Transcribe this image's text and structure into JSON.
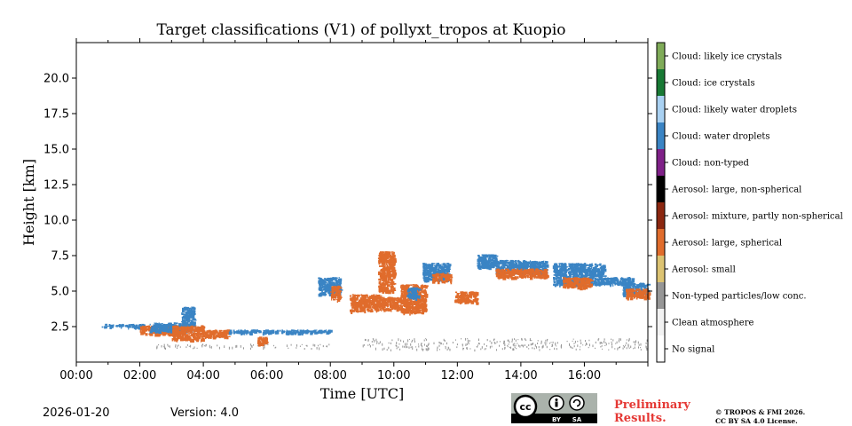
{
  "footer": {
    "date": "2026-01-20",
    "version": "Version: 4.0",
    "prelim_line1": "Preliminary",
    "prelim_line2": "Results.",
    "copyright_line1": "© TROPOS & FMI 2026.",
    "copyright_line2": "CC BY SA 4.0 License.",
    "license_badge": {
      "cc": "cc",
      "by": "BY",
      "sa": "SA"
    }
  },
  "chart_data": {
    "type": "heatmap",
    "title": "Target classifications (V1) of pollyxt_tropos at Kuopio",
    "xlabel": "Time [UTC]",
    "ylabel": "Height [km]",
    "x_unit": "hours UTC",
    "xlim": [
      0,
      18
    ],
    "ylim": [
      0.0,
      22.5
    ],
    "xticks": [
      0,
      2,
      4,
      6,
      8,
      10,
      12,
      14,
      16
    ],
    "xtick_labels": [
      "00:00",
      "02:00",
      "04:00",
      "06:00",
      "08:00",
      "10:00",
      "12:00",
      "14:00",
      "16:00"
    ],
    "yticks": [
      2.5,
      5.0,
      7.5,
      10.0,
      12.5,
      15.0,
      17.5,
      20.0
    ],
    "ytick_labels": [
      "2.5",
      "5.0",
      "7.5",
      "10.0",
      "12.5",
      "15.0",
      "17.5",
      "20.0"
    ],
    "legend": {
      "placement": "right colorbar",
      "classes": [
        {
          "label": "No signal",
          "color": "#ffffff"
        },
        {
          "label": "Clean atmosphere",
          "color": "#f2f2f2"
        },
        {
          "label": "Non-typed particles/low conc.",
          "color": "#969696"
        },
        {
          "label": "Aerosol: small",
          "color": "#dcc372"
        },
        {
          "label": "Aerosol: large, spherical",
          "color": "#e06c2c"
        },
        {
          "label": "Aerosol: mixture, partly non-spherical",
          "color": "#8b2710"
        },
        {
          "label": "Aerosol: large, non-spherical",
          "color": "#000000"
        },
        {
          "label": "Cloud: non-typed",
          "color": "#7f2188"
        },
        {
          "label": "Cloud: water droplets",
          "color": "#3a84c4"
        },
        {
          "label": "Cloud: likely water droplets",
          "color": "#a9d1f2"
        },
        {
          "label": "Cloud: ice crystals",
          "color": "#187934"
        },
        {
          "label": "Cloud: likely ice crystals",
          "color": "#7fab58"
        }
      ]
    },
    "features": [
      {
        "class": "Cloud: water droplets",
        "x": [
          0.8,
          2.1
        ],
        "y": [
          2.5,
          2.7
        ]
      },
      {
        "class": "Aerosol: large, spherical",
        "x": [
          2.0,
          3.3
        ],
        "y": [
          2.0,
          2.6
        ]
      },
      {
        "class": "Cloud: water droplets",
        "x": [
          2.3,
          3.6
        ],
        "y": [
          2.2,
          2.8
        ]
      },
      {
        "class": "Aerosol: large, spherical",
        "x": [
          3.0,
          4.0
        ],
        "y": [
          1.6,
          2.6
        ]
      },
      {
        "class": "Cloud: water droplets",
        "x": [
          3.3,
          3.7
        ],
        "y": [
          2.7,
          3.9
        ]
      },
      {
        "class": "Aerosol: large, spherical",
        "x": [
          4.0,
          4.8
        ],
        "y": [
          1.8,
          2.3
        ]
      },
      {
        "class": "Cloud: water droplets",
        "x": [
          4.8,
          6.0
        ],
        "y": [
          2.1,
          2.3
        ]
      },
      {
        "class": "Aerosol: large, spherical",
        "x": [
          5.7,
          6.0
        ],
        "y": [
          1.3,
          1.8
        ]
      },
      {
        "class": "Cloud: water droplets",
        "x": [
          6.0,
          8.0
        ],
        "y": [
          2.1,
          2.3
        ]
      },
      {
        "class": "Cloud: water droplets",
        "x": [
          7.6,
          8.3
        ],
        "y": [
          4.8,
          6.0
        ]
      },
      {
        "class": "Aerosol: large, spherical",
        "x": [
          8.0,
          8.3
        ],
        "y": [
          4.4,
          5.4
        ]
      },
      {
        "class": "Aerosol: large, spherical",
        "x": [
          8.6,
          9.6
        ],
        "y": [
          3.6,
          4.8
        ]
      },
      {
        "class": "Aerosol: large, spherical",
        "x": [
          9.6,
          10.2
        ],
        "y": [
          3.7,
          4.6
        ]
      },
      {
        "class": "Aerosol: large, spherical",
        "x": [
          9.5,
          10.0
        ],
        "y": [
          5.0,
          7.8
        ]
      },
      {
        "class": "Aerosol: large, spherical",
        "x": [
          10.2,
          11.0
        ],
        "y": [
          3.5,
          5.5
        ]
      },
      {
        "class": "Cloud: water droplets",
        "x": [
          10.4,
          10.8
        ],
        "y": [
          4.5,
          5.3
        ]
      },
      {
        "class": "Cloud: water droplets",
        "x": [
          10.9,
          11.7
        ],
        "y": [
          5.8,
          7.0
        ]
      },
      {
        "class": "Aerosol: large, spherical",
        "x": [
          11.2,
          11.8
        ],
        "y": [
          5.7,
          6.3
        ]
      },
      {
        "class": "Aerosol: large, spherical",
        "x": [
          11.9,
          12.6
        ],
        "y": [
          4.2,
          5.0
        ]
      },
      {
        "class": "Cloud: water droplets",
        "x": [
          12.6,
          13.2
        ],
        "y": [
          6.7,
          7.6
        ]
      },
      {
        "class": "Cloud: water droplets",
        "x": [
          13.2,
          14.8
        ],
        "y": [
          6.3,
          7.2
        ]
      },
      {
        "class": "Aerosol: large, spherical",
        "x": [
          13.2,
          14.8
        ],
        "y": [
          6.0,
          6.6
        ]
      },
      {
        "class": "Cloud: water droplets",
        "x": [
          15.0,
          16.6
        ],
        "y": [
          5.5,
          7.0
        ]
      },
      {
        "class": "Aerosol: large, spherical",
        "x": [
          15.3,
          16.2
        ],
        "y": [
          5.3,
          6.0
        ]
      },
      {
        "class": "Cloud: water droplets",
        "x": [
          16.6,
          17.5
        ],
        "y": [
          5.5,
          6.0
        ]
      },
      {
        "class": "Cloud: water droplets",
        "x": [
          17.2,
          18.0
        ],
        "y": [
          4.8,
          5.6
        ]
      },
      {
        "class": "Aerosol: large, spherical",
        "x": [
          17.3,
          18.0
        ],
        "y": [
          4.5,
          5.2
        ]
      },
      {
        "class": "Non-typed particles/low conc.",
        "x": [
          2.2,
          8.0
        ],
        "y": [
          1.0,
          1.3
        ]
      },
      {
        "class": "Non-typed particles/low conc.",
        "x": [
          9.0,
          18.0
        ],
        "y": [
          0.9,
          1.7
        ]
      }
    ]
  }
}
